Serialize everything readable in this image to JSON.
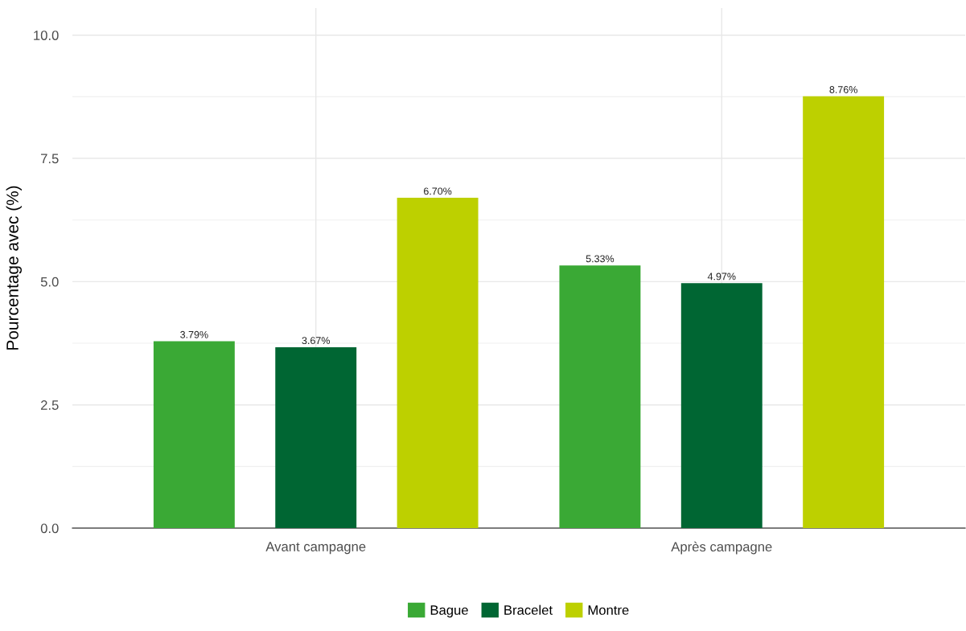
{
  "chart_data": {
    "type": "bar",
    "ylabel": "Pourcentage avec (%)",
    "categories": [
      "Avant campagne",
      "Après campagne"
    ],
    "series": [
      {
        "name": "Bague",
        "color": "#3aa935",
        "values": [
          3.79,
          5.33
        ],
        "value_labels": [
          "3.79%",
          "5.33%"
        ]
      },
      {
        "name": "Bracelet",
        "color": "#006633",
        "values": [
          3.67,
          4.97
        ],
        "value_labels": [
          "3.67%",
          "4.97%"
        ]
      },
      {
        "name": "Montre",
        "color": "#bdd000",
        "values": [
          6.7,
          8.76
        ],
        "value_labels": [
          "6.70%",
          "8.76%"
        ]
      }
    ],
    "ylim": [
      0,
      10.55
    ],
    "yticks": [
      {
        "value": 0,
        "label": "0.0"
      },
      {
        "value": 2.5,
        "label": "2.5"
      },
      {
        "value": 5,
        "label": "5.0"
      },
      {
        "value": 7.5,
        "label": "7.5"
      },
      {
        "value": 10,
        "label": "10.0"
      }
    ],
    "grid": true,
    "legend": "bottom"
  }
}
